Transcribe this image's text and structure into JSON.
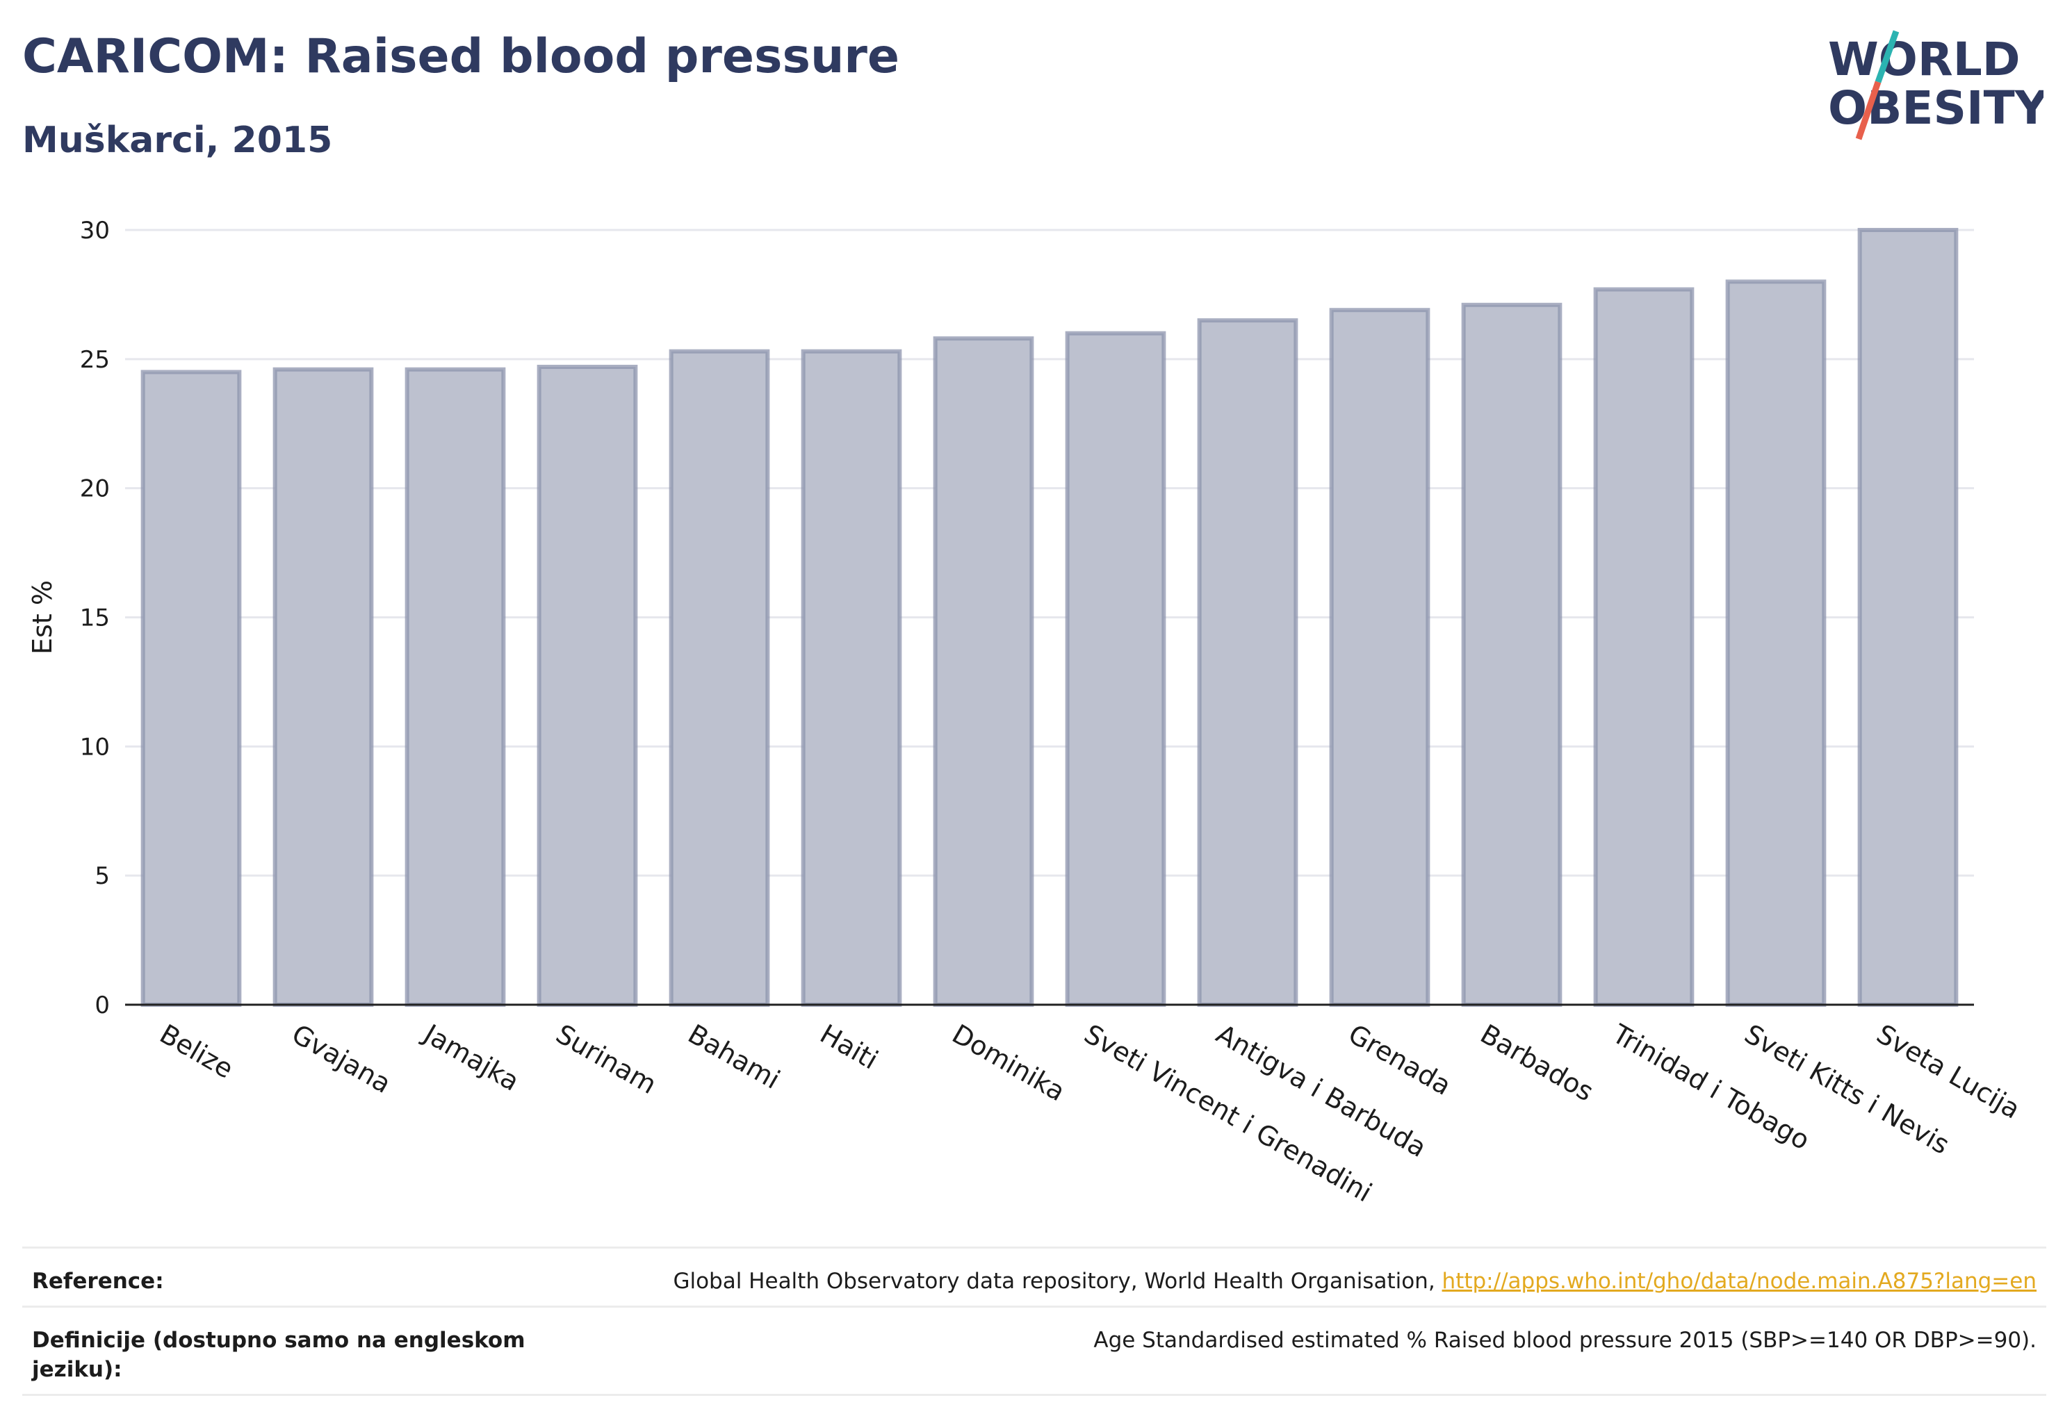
{
  "header": {
    "title": "CARICOM: Raised blood pressure",
    "subtitle": "Muškarci, 2015"
  },
  "logo": {
    "line1": "WORLD",
    "line2": "OBESITY",
    "colors": {
      "text": "#2f3a60",
      "slash_top": "#2bb3b1",
      "slash_bottom": "#e8604c"
    }
  },
  "colors": {
    "bar_fill": "#bdc1cf",
    "bar_stroke": "#8e94ae",
    "grid": "#e6e7ed",
    "axis": "#222222"
  },
  "chart_data": {
    "type": "bar",
    "categories": [
      "Belize",
      "Gvajana",
      "Jamajka",
      "Surinam",
      "Bahami",
      "Haiti",
      "Dominika",
      "Sveti Vincent i Grenadini",
      "Antigva i Barbuda",
      "Grenada",
      "Barbados",
      "Trinidad i Tobago",
      "Sveti Kitts i Nevis",
      "Sveta Lucija"
    ],
    "values": [
      24.5,
      24.6,
      24.6,
      24.7,
      25.3,
      25.3,
      25.8,
      26.0,
      26.5,
      26.9,
      27.1,
      27.7,
      28.0,
      30.0
    ],
    "ylabel": "Est %",
    "ylim": [
      0,
      30
    ],
    "yticks": [
      0,
      5,
      10,
      15,
      20,
      25,
      30
    ],
    "grid": true,
    "legend": "none"
  },
  "footer": {
    "reference_label": "Reference:",
    "reference_text": "Global Health Observatory data repository, World Health Organisation, ",
    "reference_link": "http://apps.who.int/gho/data/node.main.A875?lang=en",
    "definition_label": "Definicije (dostupno samo na engleskom jeziku):",
    "definition_text": "Age Standardised estimated % Raised blood pressure 2015 (SBP>=140 OR DBP>=90)."
  }
}
